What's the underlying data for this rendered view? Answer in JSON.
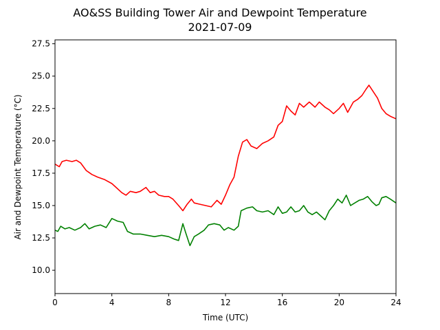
{
  "chart_data": {
    "type": "line",
    "title": "AO&SS Building Tower Air and Dewpoint Temperature",
    "subtitle": "2021-07-09",
    "xlabel": "Time (UTC)",
    "ylabel": "Air and Dewpoint Temperature (°C)",
    "xlim": [
      0,
      24
    ],
    "ylim": [
      8.2,
      27.8
    ],
    "x_ticks": [
      0,
      4,
      8,
      12,
      16,
      20,
      24
    ],
    "x_tick_labels": [
      "0",
      "4",
      "8",
      "12",
      "16",
      "20",
      "24"
    ],
    "y_ticks": [
      10.0,
      12.5,
      15.0,
      17.5,
      20.0,
      22.5,
      25.0,
      27.5
    ],
    "y_tick_labels": [
      "10.0",
      "12.5",
      "15.0",
      "17.5",
      "20.0",
      "22.5",
      "25.0",
      "27.5"
    ],
    "grid": false,
    "legend": "none",
    "series": [
      {
        "color": "#ff0000",
        "points": [
          [
            0.0,
            18.2
          ],
          [
            0.3,
            18.0
          ],
          [
            0.5,
            18.4
          ],
          [
            0.8,
            18.5
          ],
          [
            1.2,
            18.4
          ],
          [
            1.5,
            18.5
          ],
          [
            1.8,
            18.3
          ],
          [
            2.2,
            17.7
          ],
          [
            2.6,
            17.4
          ],
          [
            3.0,
            17.2
          ],
          [
            3.5,
            17.0
          ],
          [
            4.0,
            16.7
          ],
          [
            4.3,
            16.4
          ],
          [
            4.7,
            16.0
          ],
          [
            5.0,
            15.8
          ],
          [
            5.3,
            16.1
          ],
          [
            5.7,
            16.0
          ],
          [
            6.0,
            16.1
          ],
          [
            6.4,
            16.4
          ],
          [
            6.7,
            16.0
          ],
          [
            7.0,
            16.1
          ],
          [
            7.3,
            15.8
          ],
          [
            7.7,
            15.7
          ],
          [
            8.0,
            15.7
          ],
          [
            8.3,
            15.5
          ],
          [
            8.7,
            15.0
          ],
          [
            9.0,
            14.6
          ],
          [
            9.3,
            15.1
          ],
          [
            9.6,
            15.5
          ],
          [
            9.8,
            15.2
          ],
          [
            10.2,
            15.1
          ],
          [
            10.6,
            15.0
          ],
          [
            11.0,
            14.9
          ],
          [
            11.4,
            15.4
          ],
          [
            11.7,
            15.1
          ],
          [
            12.0,
            15.8
          ],
          [
            12.3,
            16.6
          ],
          [
            12.6,
            17.2
          ],
          [
            12.9,
            18.8
          ],
          [
            13.2,
            19.9
          ],
          [
            13.5,
            20.1
          ],
          [
            13.8,
            19.6
          ],
          [
            14.2,
            19.4
          ],
          [
            14.6,
            19.8
          ],
          [
            15.0,
            20.0
          ],
          [
            15.4,
            20.3
          ],
          [
            15.7,
            21.2
          ],
          [
            16.0,
            21.5
          ],
          [
            16.3,
            22.7
          ],
          [
            16.6,
            22.3
          ],
          [
            16.9,
            22.0
          ],
          [
            17.2,
            22.9
          ],
          [
            17.5,
            22.6
          ],
          [
            17.9,
            23.0
          ],
          [
            18.3,
            22.6
          ],
          [
            18.6,
            23.0
          ],
          [
            19.0,
            22.6
          ],
          [
            19.3,
            22.4
          ],
          [
            19.6,
            22.1
          ],
          [
            20.0,
            22.5
          ],
          [
            20.3,
            22.9
          ],
          [
            20.6,
            22.2
          ],
          [
            21.0,
            23.0
          ],
          [
            21.3,
            23.2
          ],
          [
            21.6,
            23.5
          ],
          [
            21.9,
            24.0
          ],
          [
            22.1,
            24.3
          ],
          [
            22.4,
            23.8
          ],
          [
            22.7,
            23.3
          ],
          [
            23.0,
            22.5
          ],
          [
            23.3,
            22.1
          ],
          [
            23.6,
            21.9
          ],
          [
            24.0,
            21.7
          ]
        ]
      },
      {
        "color": "#008000",
        "points": [
          [
            0.0,
            13.1
          ],
          [
            0.2,
            13.0
          ],
          [
            0.4,
            13.4
          ],
          [
            0.7,
            13.2
          ],
          [
            1.0,
            13.3
          ],
          [
            1.4,
            13.1
          ],
          [
            1.8,
            13.3
          ],
          [
            2.1,
            13.6
          ],
          [
            2.4,
            13.2
          ],
          [
            2.8,
            13.4
          ],
          [
            3.2,
            13.5
          ],
          [
            3.6,
            13.3
          ],
          [
            4.0,
            14.0
          ],
          [
            4.4,
            13.8
          ],
          [
            4.8,
            13.7
          ],
          [
            5.1,
            13.0
          ],
          [
            5.5,
            12.8
          ],
          [
            6.0,
            12.8
          ],
          [
            6.5,
            12.7
          ],
          [
            7.0,
            12.6
          ],
          [
            7.5,
            12.7
          ],
          [
            8.0,
            12.6
          ],
          [
            8.4,
            12.4
          ],
          [
            8.7,
            12.3
          ],
          [
            9.0,
            13.6
          ],
          [
            9.2,
            12.9
          ],
          [
            9.5,
            11.9
          ],
          [
            9.8,
            12.6
          ],
          [
            10.1,
            12.8
          ],
          [
            10.5,
            13.1
          ],
          [
            10.8,
            13.5
          ],
          [
            11.2,
            13.6
          ],
          [
            11.6,
            13.5
          ],
          [
            11.9,
            13.1
          ],
          [
            12.2,
            13.3
          ],
          [
            12.6,
            13.1
          ],
          [
            12.9,
            13.4
          ],
          [
            13.1,
            14.6
          ],
          [
            13.5,
            14.8
          ],
          [
            13.9,
            14.9
          ],
          [
            14.2,
            14.6
          ],
          [
            14.6,
            14.5
          ],
          [
            15.0,
            14.6
          ],
          [
            15.4,
            14.3
          ],
          [
            15.7,
            14.9
          ],
          [
            16.0,
            14.4
          ],
          [
            16.3,
            14.5
          ],
          [
            16.6,
            14.9
          ],
          [
            16.9,
            14.5
          ],
          [
            17.2,
            14.6
          ],
          [
            17.5,
            15.0
          ],
          [
            17.8,
            14.5
          ],
          [
            18.1,
            14.3
          ],
          [
            18.4,
            14.5
          ],
          [
            18.7,
            14.2
          ],
          [
            19.0,
            13.9
          ],
          [
            19.3,
            14.6
          ],
          [
            19.6,
            15.0
          ],
          [
            19.9,
            15.5
          ],
          [
            20.2,
            15.2
          ],
          [
            20.5,
            15.8
          ],
          [
            20.8,
            15.0
          ],
          [
            21.1,
            15.2
          ],
          [
            21.4,
            15.4
          ],
          [
            21.7,
            15.5
          ],
          [
            22.0,
            15.7
          ],
          [
            22.3,
            15.3
          ],
          [
            22.6,
            15.0
          ],
          [
            22.8,
            15.1
          ],
          [
            23.0,
            15.6
          ],
          [
            23.3,
            15.7
          ],
          [
            23.6,
            15.5
          ],
          [
            24.0,
            15.2
          ]
        ]
      }
    ]
  }
}
